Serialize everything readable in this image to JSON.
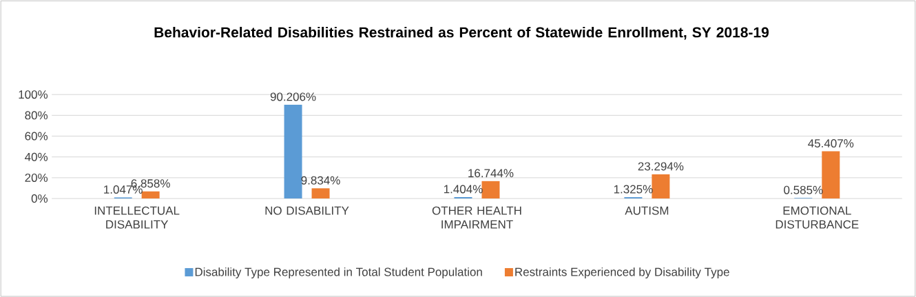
{
  "chart_data": {
    "type": "bar",
    "title": "Behavior-Related Disabilities Restrained as Percent of Statewide Enrollment, SY 2018-19",
    "categories": [
      "INTELLECTUAL DISABILITY",
      "NO DISABILITY",
      "OTHER HEALTH IMPAIRMENT",
      "AUTISM",
      "EMOTIONAL DISTURBANCE"
    ],
    "series": [
      {
        "name": "Disability Type Represented in Total Student Population",
        "color": "#5b9bd5",
        "values": [
          1.047,
          90.206,
          1.404,
          1.325,
          0.585
        ],
        "value_labels": [
          "1.047%",
          "90.206%",
          "1.404%",
          "1.325%",
          "0.585%"
        ]
      },
      {
        "name": "Restraints Experienced by Disability Type",
        "color": "#ed7d31",
        "values": [
          6.858,
          9.834,
          16.744,
          23.294,
          45.407
        ],
        "value_labels": [
          "6.858%",
          "9.834%",
          "16.744%",
          "23.294%",
          "45.407%"
        ]
      }
    ],
    "ylim": [
      0,
      100
    ],
    "yticks": [
      {
        "value": 0,
        "label": "0%"
      },
      {
        "value": 20,
        "label": "20%"
      },
      {
        "value": 40,
        "label": "40%"
      },
      {
        "value": 60,
        "label": "60%"
      },
      {
        "value": 80,
        "label": "80%"
      },
      {
        "value": 100,
        "label": "100%"
      }
    ],
    "grid": "y",
    "legend": "bottom"
  }
}
